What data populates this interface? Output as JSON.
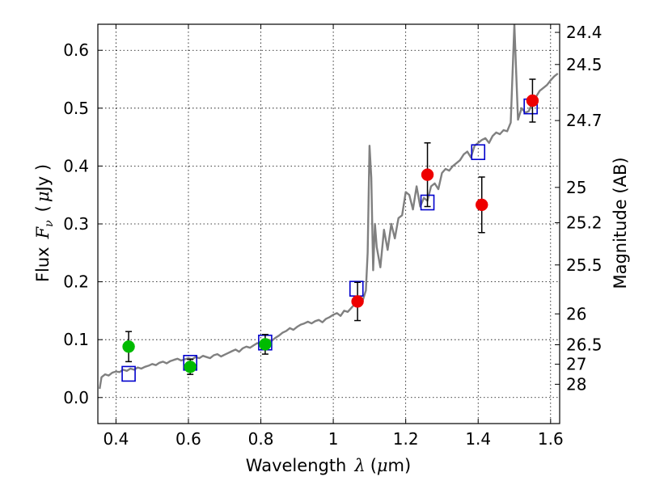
{
  "chart_data": {
    "type": "scatter",
    "title": "",
    "xlabel": {
      "prefix": "Wavelength",
      "symbol": "λ",
      "unit_open": "(",
      "unit_mu": "μ",
      "unit_rest": "m)"
    },
    "ylabel": {
      "prefix": "Flux",
      "symbol": "F",
      "subscript": "ν",
      "unit_open": "(",
      "unit_mu": "μ",
      "unit_rest": "Jy )"
    },
    "y2label": "Magnitude (AB)",
    "xlim": [
      0.35,
      1.625
    ],
    "ylim": [
      -0.045,
      0.645
    ],
    "grid": true,
    "x_ticks": [
      {
        "value": 0.4,
        "label": "0.4"
      },
      {
        "value": 0.6,
        "label": "0.6"
      },
      {
        "value": 0.8,
        "label": "0.8"
      },
      {
        "value": 1.0,
        "label": "1"
      },
      {
        "value": 1.2,
        "label": "1.2"
      },
      {
        "value": 1.4,
        "label": "1.4"
      },
      {
        "value": 1.6,
        "label": "1.6"
      }
    ],
    "y_ticks": [
      {
        "value": 0.0,
        "label": "0.0"
      },
      {
        "value": 0.1,
        "label": "0.1"
      },
      {
        "value": 0.2,
        "label": "0.2"
      },
      {
        "value": 0.3,
        "label": "0.3"
      },
      {
        "value": 0.4,
        "label": "0.4"
      },
      {
        "value": 0.5,
        "label": "0.5"
      },
      {
        "value": 0.6,
        "label": "0.6"
      }
    ],
    "magnitude_ticks": [
      {
        "mag": 24.4,
        "label": "24.4"
      },
      {
        "mag": 24.5,
        "label": "24.5"
      },
      {
        "mag": 24.7,
        "label": "24.7"
      },
      {
        "mag": 25.0,
        "label": "25"
      },
      {
        "mag": 25.2,
        "label": "25.2"
      },
      {
        "mag": 25.5,
        "label": "25.5"
      },
      {
        "mag": 26.0,
        "label": "26"
      },
      {
        "mag": 26.5,
        "label": "26.5"
      },
      {
        "mag": 27.0,
        "label": "27"
      },
      {
        "mag": 28.0,
        "label": "28"
      }
    ],
    "series": [
      {
        "name": "model_spectrum",
        "kind": "line",
        "color": "#808080",
        "x": [
          0.355,
          0.36,
          0.37,
          0.38,
          0.39,
          0.4,
          0.41,
          0.42,
          0.43,
          0.44,
          0.45,
          0.46,
          0.47,
          0.48,
          0.49,
          0.5,
          0.51,
          0.52,
          0.53,
          0.54,
          0.55,
          0.56,
          0.57,
          0.58,
          0.59,
          0.6,
          0.61,
          0.62,
          0.63,
          0.64,
          0.65,
          0.66,
          0.67,
          0.68,
          0.69,
          0.7,
          0.71,
          0.72,
          0.73,
          0.74,
          0.75,
          0.76,
          0.77,
          0.78,
          0.79,
          0.8,
          0.81,
          0.82,
          0.83,
          0.84,
          0.85,
          0.86,
          0.87,
          0.88,
          0.89,
          0.9,
          0.91,
          0.92,
          0.93,
          0.94,
          0.95,
          0.96,
          0.97,
          0.98,
          0.99,
          1.0,
          1.01,
          1.02,
          1.03,
          1.04,
          1.05,
          1.06,
          1.07,
          1.08,
          1.09,
          1.095,
          1.1,
          1.105,
          1.11,
          1.115,
          1.12,
          1.13,
          1.14,
          1.15,
          1.16,
          1.17,
          1.18,
          1.19,
          1.2,
          1.21,
          1.22,
          1.23,
          1.24,
          1.25,
          1.26,
          1.27,
          1.28,
          1.29,
          1.3,
          1.31,
          1.32,
          1.33,
          1.34,
          1.35,
          1.36,
          1.37,
          1.38,
          1.39,
          1.4,
          1.41,
          1.42,
          1.43,
          1.44,
          1.45,
          1.46,
          1.47,
          1.48,
          1.49,
          1.5,
          1.505,
          1.51,
          1.515,
          1.52,
          1.53,
          1.54,
          1.55,
          1.56,
          1.57,
          1.58,
          1.59,
          1.6,
          1.61,
          1.62
        ],
        "y": [
          0.015,
          0.035,
          0.04,
          0.038,
          0.043,
          0.045,
          0.044,
          0.048,
          0.046,
          0.05,
          0.048,
          0.052,
          0.05,
          0.053,
          0.055,
          0.058,
          0.056,
          0.06,
          0.062,
          0.059,
          0.063,
          0.065,
          0.067,
          0.064,
          0.066,
          0.068,
          0.066,
          0.07,
          0.068,
          0.072,
          0.07,
          0.068,
          0.073,
          0.075,
          0.071,
          0.074,
          0.077,
          0.08,
          0.083,
          0.079,
          0.085,
          0.088,
          0.086,
          0.09,
          0.094,
          0.092,
          0.096,
          0.1,
          0.098,
          0.103,
          0.107,
          0.112,
          0.115,
          0.12,
          0.117,
          0.122,
          0.126,
          0.128,
          0.131,
          0.128,
          0.132,
          0.134,
          0.13,
          0.136,
          0.139,
          0.143,
          0.146,
          0.141,
          0.15,
          0.148,
          0.155,
          0.162,
          0.17,
          0.165,
          0.185,
          0.25,
          0.435,
          0.38,
          0.22,
          0.3,
          0.26,
          0.225,
          0.29,
          0.255,
          0.3,
          0.275,
          0.31,
          0.315,
          0.355,
          0.35,
          0.325,
          0.365,
          0.33,
          0.345,
          0.34,
          0.365,
          0.37,
          0.36,
          0.388,
          0.395,
          0.392,
          0.4,
          0.405,
          0.41,
          0.42,
          0.425,
          0.415,
          0.435,
          0.44,
          0.445,
          0.448,
          0.44,
          0.452,
          0.458,
          0.455,
          0.462,
          0.46,
          0.475,
          0.645,
          0.56,
          0.48,
          0.49,
          0.5,
          0.492,
          0.495,
          0.51,
          0.52,
          0.53,
          0.535,
          0.54,
          0.548,
          0.555,
          0.56
        ]
      },
      {
        "name": "model_photometry",
        "kind": "open-square",
        "color": "#0000cc",
        "x": [
          0.435,
          0.605,
          0.812,
          1.064,
          1.26,
          1.4,
          1.545
        ],
        "y": [
          0.041,
          0.06,
          0.095,
          0.188,
          0.337,
          0.424,
          0.503
        ]
      },
      {
        "name": "observed_green",
        "kind": "filled-circle",
        "color": "#00bb00",
        "x": [
          0.435,
          0.605,
          0.812
        ],
        "y": [
          0.088,
          0.053,
          0.092
        ],
        "err_low": [
          0.026,
          0.013,
          0.017
        ],
        "err_high": [
          0.026,
          0.013,
          0.017
        ]
      },
      {
        "name": "observed_red",
        "kind": "filled-circle",
        "color": "#ee0000",
        "x": [
          1.067,
          1.26,
          1.41,
          1.55
        ],
        "y": [
          0.166,
          0.385,
          0.333,
          0.513
        ],
        "err_low": [
          0.033,
          0.055,
          0.048,
          0.037
        ],
        "err_high": [
          0.033,
          0.055,
          0.048,
          0.037
        ]
      }
    ]
  }
}
